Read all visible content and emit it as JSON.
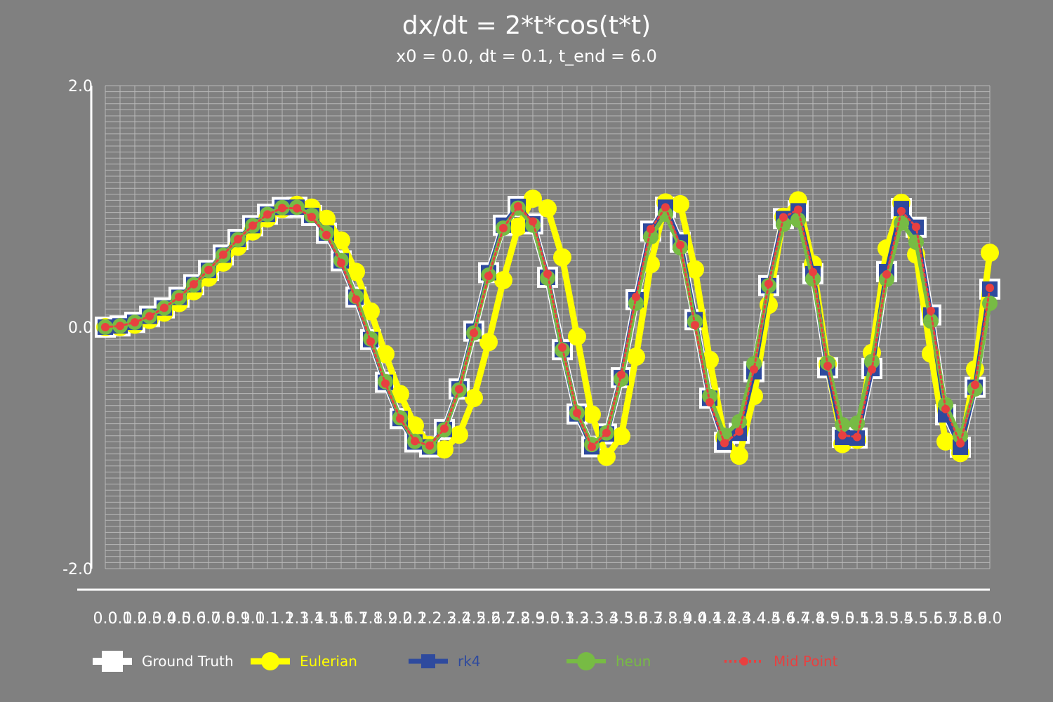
{
  "title": "dx/dt = 2*t*cos(t*t)",
  "subtitle": "x0 = 0.0, dt = 0.1, t_end = 6.0",
  "legend": [
    {
      "key": "ground_truth",
      "label": "Ground Truth",
      "color": "#ffffff",
      "marker": "square"
    },
    {
      "key": "eulerian",
      "label": "Eulerian",
      "color": "#ffff00",
      "marker": "circle"
    },
    {
      "key": "rk4",
      "label": "rk4",
      "color": "#2e4a9e",
      "marker": "square"
    },
    {
      "key": "heun",
      "label": "heun",
      "color": "#77bb44",
      "marker": "circle"
    },
    {
      "key": "midpoint",
      "label": "Mid Point",
      "color": "#e84040",
      "marker": "circle-dotted"
    }
  ],
  "chart_data": {
    "type": "line",
    "title": "dx/dt = 2*t*cos(t*t)",
    "subtitle": "x0 = 0.0, dt = 0.1, t_end = 6.0",
    "xlabel": "",
    "ylabel": "",
    "x": [
      0.0,
      0.1,
      0.2,
      0.3,
      0.4,
      0.5,
      0.6,
      0.7,
      0.8,
      0.9,
      1.0,
      1.1,
      1.2,
      1.3,
      1.4,
      1.5,
      1.6,
      1.7,
      1.8,
      1.9,
      2.0,
      2.1,
      2.2,
      2.3,
      2.4,
      2.5,
      2.6,
      2.7,
      2.8,
      2.9,
      3.0,
      3.1,
      3.2,
      3.3,
      3.4,
      3.5,
      3.6,
      3.7,
      3.8,
      3.9,
      4.0,
      4.1,
      4.2,
      4.3,
      4.4,
      4.5,
      4.6,
      4.7,
      4.8,
      4.9,
      5.0,
      5.1,
      5.2,
      5.3,
      5.4,
      5.5,
      5.6,
      5.7,
      5.8,
      5.9,
      6.0
    ],
    "ylim": [
      -2.0,
      2.0
    ],
    "grid": true,
    "legend_position": "bottom",
    "series": [
      {
        "name": "Ground Truth",
        "values": [
          0.0,
          0.01,
          0.04,
          0.09,
          0.159,
          0.247,
          0.352,
          0.47,
          0.597,
          0.726,
          0.841,
          0.935,
          0.991,
          0.993,
          0.925,
          0.778,
          0.549,
          0.248,
          -0.103,
          -0.457,
          -0.757,
          -0.951,
          -0.992,
          -0.848,
          -0.512,
          -0.033,
          0.451,
          0.844,
          1.0,
          0.855,
          0.413,
          -0.187,
          -0.719,
          -0.991,
          -0.885,
          -0.419,
          0.227,
          0.795,
          0.993,
          0.704,
          0.062,
          -0.589,
          -0.953,
          -0.879,
          -0.369,
          0.344,
          0.899,
          0.963,
          0.443,
          -0.337,
          -0.913,
          -0.919,
          -0.343,
          0.459,
          0.982,
          0.827,
          0.101,
          -0.726,
          -0.994,
          -0.498,
          0.315
        ]
      },
      {
        "name": "Eulerian",
        "values": [
          0.0,
          0.0,
          0.02,
          0.06,
          0.12,
          0.199,
          0.297,
          0.41,
          0.535,
          0.666,
          0.792,
          0.9,
          0.978,
          1.013,
          0.99,
          0.897,
          0.718,
          0.458,
          0.13,
          -0.223,
          -0.554,
          -0.815,
          -0.977,
          -1.013,
          -0.891,
          -0.587,
          -0.124,
          0.389,
          0.831,
          1.064,
          0.983,
          0.578,
          -0.078,
          -0.723,
          -1.074,
          -0.902,
          -0.245,
          0.522,
          1.033,
          1.018,
          0.478,
          -0.272,
          -0.916,
          -1.065,
          -0.571,
          0.184,
          0.914,
          1.05,
          0.522,
          -0.307,
          -0.968,
          -0.933,
          -0.213,
          0.652,
          1.03,
          0.601,
          -0.22,
          -0.947,
          -1.043,
          -0.349,
          0.616
        ]
      },
      {
        "name": "rk4",
        "values": [
          0.0,
          0.01,
          0.04,
          0.09,
          0.159,
          0.247,
          0.352,
          0.47,
          0.597,
          0.726,
          0.841,
          0.935,
          0.991,
          0.993,
          0.925,
          0.778,
          0.549,
          0.248,
          -0.103,
          -0.457,
          -0.757,
          -0.951,
          -0.992,
          -0.848,
          -0.512,
          -0.033,
          0.451,
          0.844,
          1.0,
          0.855,
          0.413,
          -0.187,
          -0.719,
          -0.991,
          -0.885,
          -0.419,
          0.227,
          0.795,
          0.993,
          0.704,
          0.062,
          -0.589,
          -0.953,
          -0.879,
          -0.369,
          0.344,
          0.899,
          0.963,
          0.443,
          -0.337,
          -0.913,
          -0.919,
          -0.343,
          0.459,
          0.982,
          0.827,
          0.101,
          -0.726,
          -0.994,
          -0.498,
          0.315
        ]
      },
      {
        "name": "heun",
        "values": [
          0.0,
          0.01,
          0.04,
          0.09,
          0.159,
          0.246,
          0.35,
          0.469,
          0.596,
          0.724,
          0.84,
          0.934,
          0.99,
          0.992,
          0.925,
          0.779,
          0.552,
          0.253,
          -0.097,
          -0.451,
          -0.751,
          -0.946,
          -0.99,
          -0.85,
          -0.52,
          -0.048,
          0.43,
          0.82,
          0.985,
          0.845,
          0.407,
          -0.19,
          -0.71,
          -0.972,
          -0.876,
          -0.43,
          0.198,
          0.748,
          0.935,
          0.658,
          0.045,
          -0.573,
          -0.895,
          -0.783,
          -0.303,
          0.343,
          0.852,
          0.887,
          0.399,
          -0.297,
          -0.808,
          -0.795,
          -0.285,
          0.396,
          0.862,
          0.703,
          0.05,
          -0.643,
          -0.902,
          -0.512,
          0.197
        ]
      },
      {
        "name": "Mid Point",
        "values": [
          0.0,
          0.01,
          0.04,
          0.09,
          0.16,
          0.249,
          0.355,
          0.473,
          0.6,
          0.728,
          0.841,
          0.933,
          0.986,
          0.984,
          0.912,
          0.763,
          0.532,
          0.23,
          -0.119,
          -0.467,
          -0.758,
          -0.944,
          -0.981,
          -0.841,
          -0.514,
          -0.049,
          0.424,
          0.82,
          1.0,
          0.875,
          0.441,
          -0.168,
          -0.711,
          -0.991,
          -0.876,
          -0.394,
          0.25,
          0.812,
          0.992,
          0.68,
          0.017,
          -0.622,
          -0.961,
          -0.865,
          -0.35,
          0.358,
          0.91,
          0.973,
          0.456,
          -0.321,
          -0.896,
          -0.91,
          -0.35,
          0.437,
          0.96,
          0.83,
          0.135,
          -0.679,
          -0.963,
          -0.478,
          0.325
        ]
      }
    ]
  }
}
